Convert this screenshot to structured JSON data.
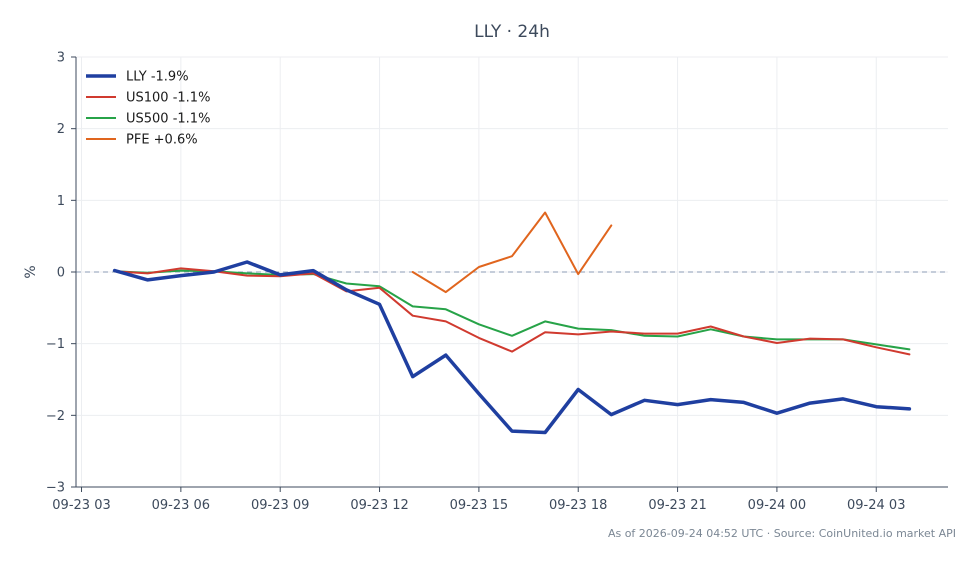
{
  "chart_data": {
    "type": "line",
    "title": "LLY · 24h",
    "xlabel": "",
    "ylabel": "%",
    "ylim": [
      -3,
      3
    ],
    "yticks": [
      -3,
      -2,
      -1,
      0,
      1,
      2,
      3
    ],
    "ytick_labels": [
      "−3",
      "−2",
      "−1",
      "0",
      "1",
      "2",
      "3"
    ],
    "xlim": [
      "2026-09-23 02:50",
      "2026-09-24 05:10"
    ],
    "xticks": [
      "2026-09-23 03:00",
      "2026-09-23 06:00",
      "2026-09-23 09:00",
      "2026-09-23 12:00",
      "2026-09-23 15:00",
      "2026-09-23 18:00",
      "2026-09-23 21:00",
      "2026-09-24 00:00",
      "2026-09-24 03:00"
    ],
    "xtick_labels": [
      "09-23 03",
      "09-23 06",
      "09-23 09",
      "09-23 12",
      "09-23 15",
      "09-23 18",
      "09-23 21",
      "09-24 00",
      "09-24 03"
    ],
    "zero_line": true,
    "grid": true,
    "legend_position": "top-left",
    "series": [
      {
        "name": "LLY -1.9%",
        "color": "#1f3fa0",
        "width": 3.5,
        "x": [
          "2026-09-23 04:00",
          "2026-09-23 05:00",
          "2026-09-23 06:00",
          "2026-09-23 07:00",
          "2026-09-23 08:00",
          "2026-09-23 09:00",
          "2026-09-23 10:00",
          "2026-09-23 11:00",
          "2026-09-23 12:00",
          "2026-09-23 13:00",
          "2026-09-23 14:00",
          "2026-09-23 15:00",
          "2026-09-23 16:00",
          "2026-09-23 17:00",
          "2026-09-23 18:00",
          "2026-09-23 19:00",
          "2026-09-23 20:00",
          "2026-09-23 21:00",
          "2026-09-23 22:00",
          "2026-09-23 23:00",
          "2026-09-24 00:00",
          "2026-09-24 01:00",
          "2026-09-24 02:00",
          "2026-09-24 03:00",
          "2026-09-24 04:00"
        ],
        "y": [
          0.02,
          -0.11,
          -0.05,
          0.0,
          0.14,
          -0.04,
          0.02,
          -0.25,
          -0.45,
          -1.46,
          -1.16,
          -1.7,
          -2.22,
          -2.24,
          -1.64,
          -1.99,
          -1.79,
          -1.85,
          -1.78,
          -1.82,
          -1.97,
          -1.83,
          -1.77,
          -1.88,
          -1.91
        ]
      },
      {
        "name": "US100 -1.1%",
        "color": "#d03a2f",
        "width": 2,
        "x": [
          "2026-09-23 04:00",
          "2026-09-23 05:00",
          "2026-09-23 06:00",
          "2026-09-23 07:00",
          "2026-09-23 08:00",
          "2026-09-23 09:00",
          "2026-09-23 10:00",
          "2026-09-23 11:00",
          "2026-09-23 12:00",
          "2026-09-23 13:00",
          "2026-09-23 14:00",
          "2026-09-23 15:00",
          "2026-09-23 16:00",
          "2026-09-23 17:00",
          "2026-09-23 18:00",
          "2026-09-23 19:00",
          "2026-09-23 20:00",
          "2026-09-23 21:00",
          "2026-09-23 22:00",
          "2026-09-23 23:00",
          "2026-09-24 00:00",
          "2026-09-24 01:00",
          "2026-09-24 02:00",
          "2026-09-24 03:00",
          "2026-09-24 04:00"
        ],
        "y": [
          0.01,
          -0.02,
          0.05,
          0.01,
          -0.05,
          -0.06,
          -0.02,
          -0.27,
          -0.22,
          -0.61,
          -0.69,
          -0.92,
          -1.11,
          -0.84,
          -0.87,
          -0.83,
          -0.86,
          -0.86,
          -0.76,
          -0.9,
          -0.99,
          -0.93,
          -0.94,
          -1.05,
          -1.15
        ]
      },
      {
        "name": "US500 -1.1%",
        "color": "#27a348",
        "width": 2,
        "x": [
          "2026-09-23 04:00",
          "2026-09-23 05:00",
          "2026-09-23 06:00",
          "2026-09-23 07:00",
          "2026-09-23 08:00",
          "2026-09-23 09:00",
          "2026-09-23 10:00",
          "2026-09-23 11:00",
          "2026-09-23 12:00",
          "2026-09-23 13:00",
          "2026-09-23 14:00",
          "2026-09-23 15:00",
          "2026-09-23 16:00",
          "2026-09-23 17:00",
          "2026-09-23 18:00",
          "2026-09-23 19:00",
          "2026-09-23 20:00",
          "2026-09-23 21:00",
          "2026-09-23 22:00",
          "2026-09-23 23:00",
          "2026-09-24 00:00",
          "2026-09-24 01:00",
          "2026-09-24 02:00",
          "2026-09-24 03:00",
          "2026-09-24 04:00"
        ],
        "y": [
          0.01,
          -0.01,
          0.02,
          0.01,
          -0.02,
          -0.04,
          -0.03,
          -0.16,
          -0.2,
          -0.48,
          -0.52,
          -0.73,
          -0.89,
          -0.69,
          -0.79,
          -0.81,
          -0.89,
          -0.9,
          -0.8,
          -0.9,
          -0.94,
          -0.94,
          -0.94,
          -1.01,
          -1.08
        ]
      },
      {
        "name": "PFE +0.6%",
        "color": "#e0651e",
        "width": 2,
        "x": [
          "2026-09-23 13:00",
          "2026-09-23 14:00",
          "2026-09-23 15:00",
          "2026-09-23 16:00",
          "2026-09-23 17:00",
          "2026-09-23 18:00",
          "2026-09-23 19:00"
        ],
        "y": [
          0.0,
          -0.28,
          0.07,
          0.22,
          0.83,
          -0.03,
          0.65
        ]
      }
    ]
  },
  "footer": "As of 2026-09-24 04:52 UTC · Source: CoinUnited.io market API"
}
